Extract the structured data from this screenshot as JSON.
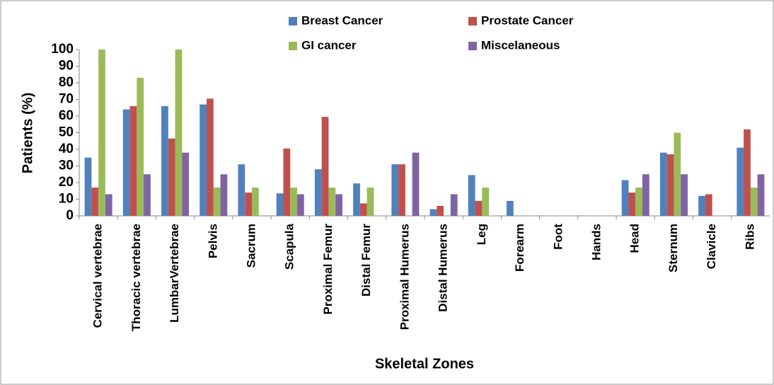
{
  "chart_data": {
    "type": "bar",
    "xlabel": "Skeletal Zones",
    "ylabel": "Patients (%)",
    "categories": [
      "Cervical vertebrae",
      "Thoracic vertebrae",
      "LumbarVertebrae",
      "Pelvis",
      "Sacrum",
      "Scapula",
      "Proximal Femur",
      "Distal Femur",
      "Proximal Humerus",
      "Distal Humerus",
      "Leg",
      "Forearm",
      "Foot",
      "Hands",
      "Head",
      "Sternum",
      "Clavicle",
      "Ribs"
    ],
    "series": [
      {
        "name": "Breast Cancer",
        "color": "#4f81bd",
        "values": [
          35,
          64,
          66,
          67,
          31,
          13.5,
          28,
          19.5,
          31,
          4,
          24.5,
          9,
          0,
          0,
          21.5,
          38,
          12,
          41
        ]
      },
      {
        "name": "Prostate Cancer",
        "color": "#c0504d",
        "values": [
          17,
          66,
          46.5,
          70.5,
          14,
          40.5,
          59.5,
          7.5,
          31,
          6,
          9,
          0,
          0,
          0,
          14,
          37,
          13,
          52
        ]
      },
      {
        "name": "GI cancer",
        "color": "#9bbb59",
        "values": [
          100,
          83,
          100,
          17,
          17,
          17,
          17,
          17,
          0,
          0,
          17,
          0,
          0,
          0,
          17,
          50,
          0,
          17
        ]
      },
      {
        "name": "Miscelaneous",
        "color": "#8064a2",
        "values": [
          13,
          25,
          38,
          25,
          0,
          13,
          13,
          0,
          38,
          13,
          0,
          0,
          0,
          0,
          25,
          25,
          0,
          25
        ]
      }
    ],
    "ylim": [
      0,
      100
    ],
    "yticks": [
      0,
      10,
      20,
      30,
      40,
      50,
      60,
      70,
      80,
      90,
      100
    ]
  }
}
